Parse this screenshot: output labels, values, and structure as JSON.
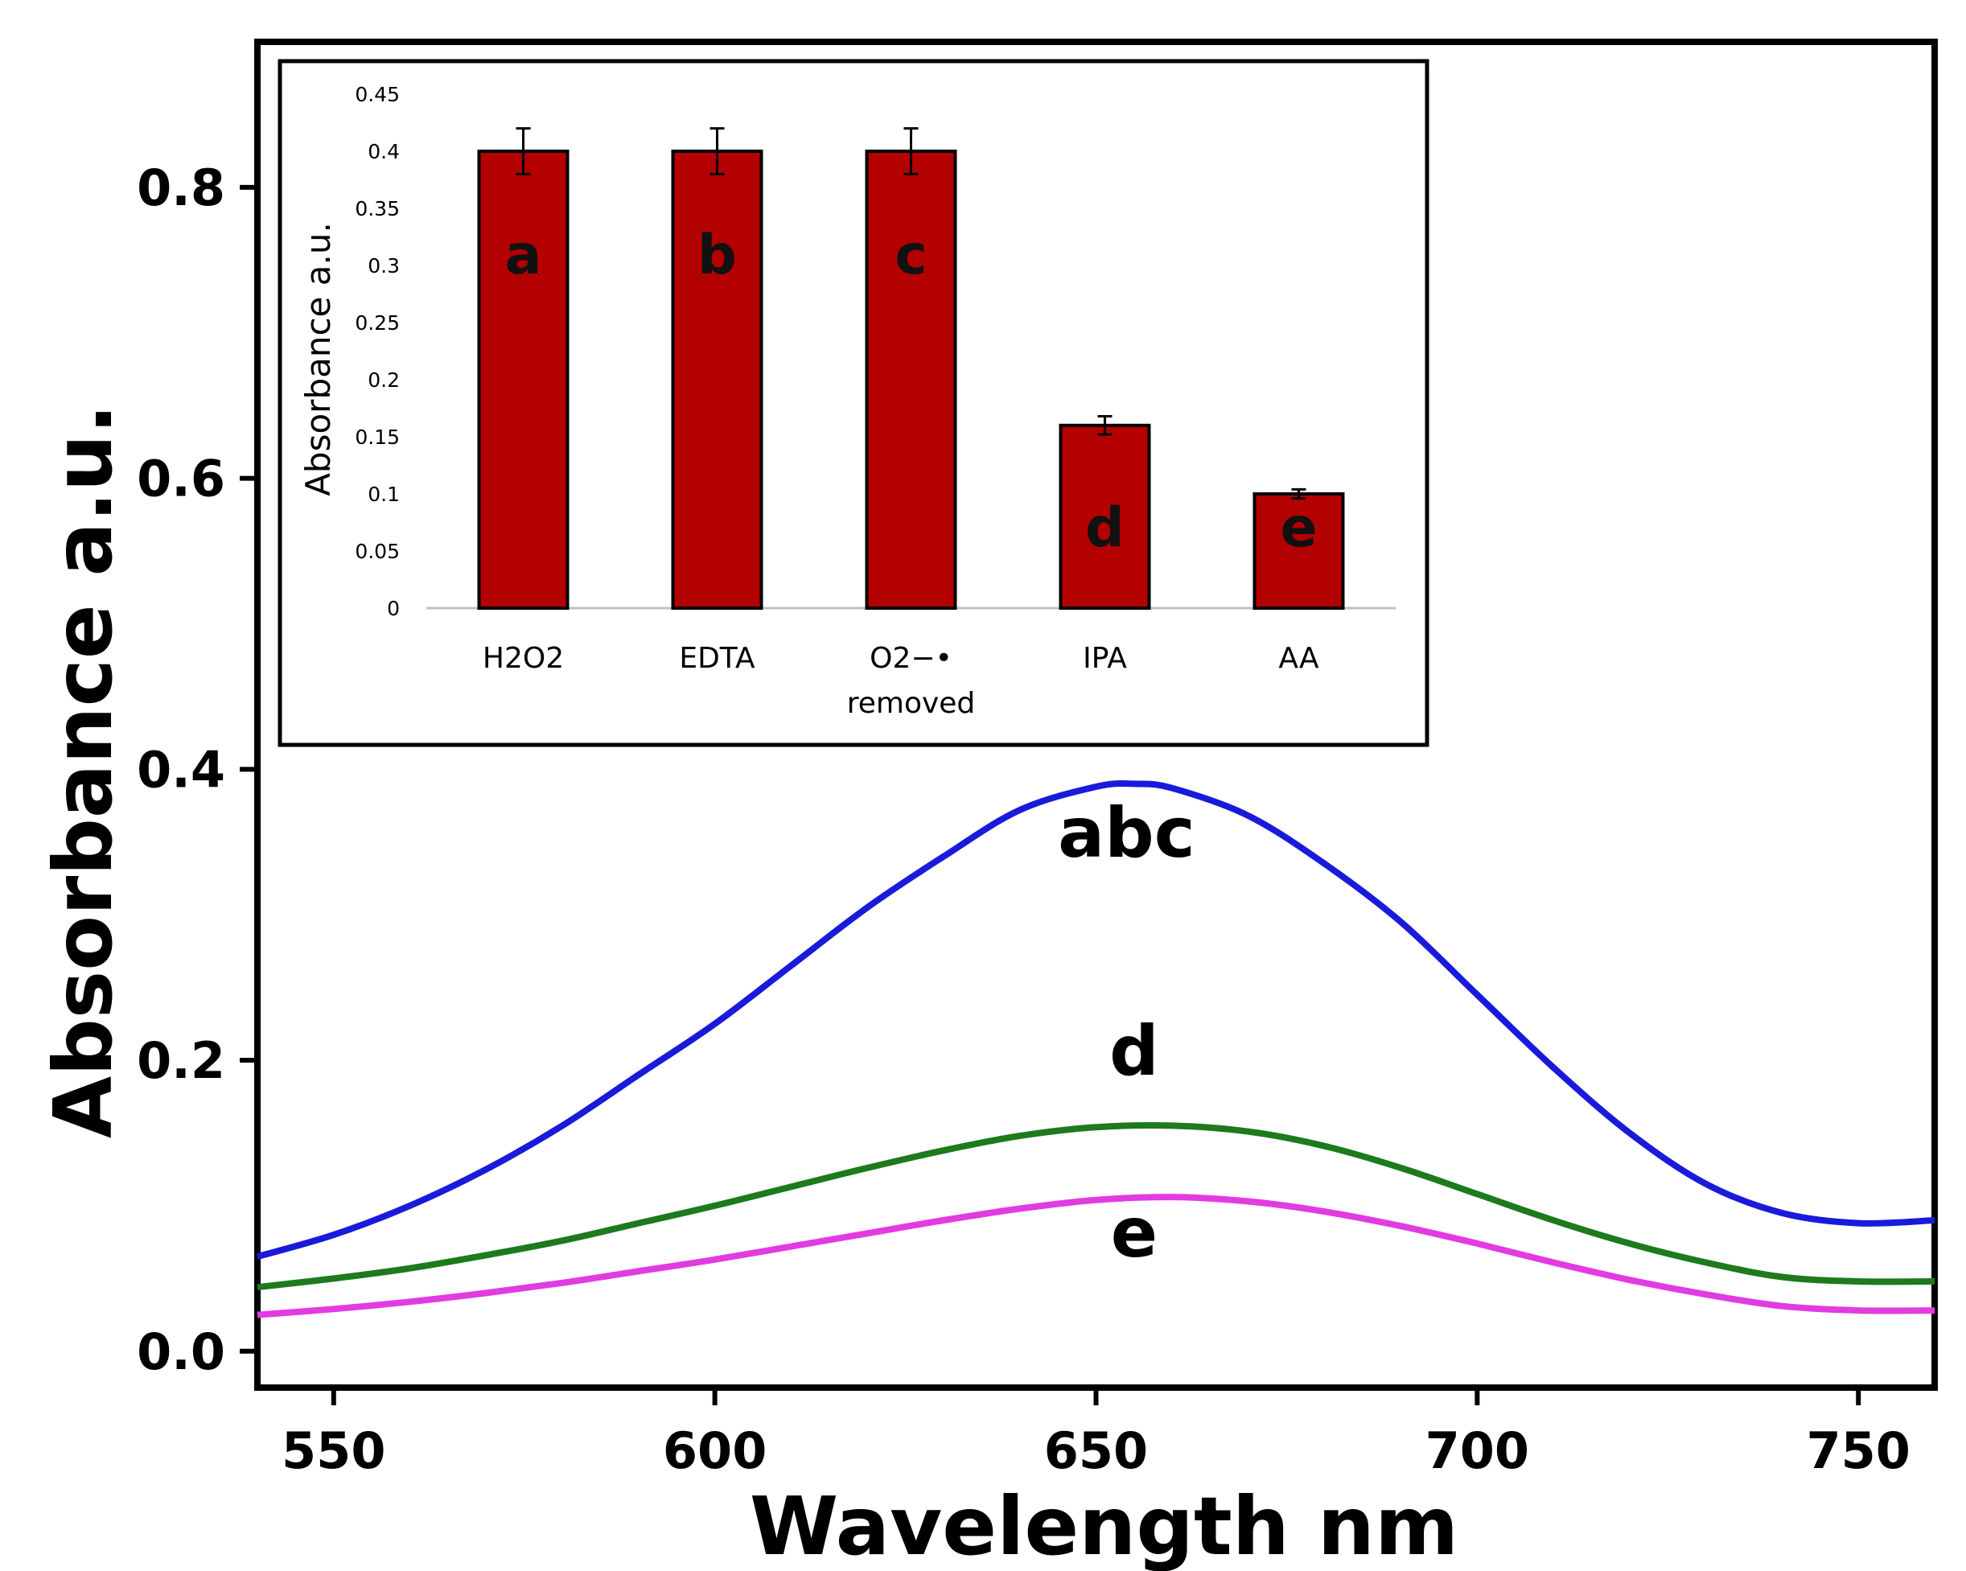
{
  "chart_data": [
    {
      "type": "line",
      "title": "",
      "xlabel": "Wavelength nm",
      "ylabel": "Absorbance a.u.",
      "xlim": [
        540,
        760
      ],
      "ylim": [
        -0.025,
        0.9
      ],
      "xticks": [
        550,
        600,
        650,
        700,
        750
      ],
      "yticks": [
        0.0,
        0.2,
        0.4,
        0.6,
        0.8
      ],
      "xtick_labels": [
        "550",
        "600",
        "650",
        "700",
        "750"
      ],
      "ytick_labels": [
        "0.0",
        "0.2",
        "0.4",
        "0.6",
        "0.8"
      ],
      "grid": false,
      "series": [
        {
          "name": "abc",
          "label": "abc",
          "color": "#1a1adb",
          "x": [
            540,
            550,
            560,
            570,
            580,
            590,
            600,
            610,
            620,
            630,
            640,
            650,
            655,
            660,
            670,
            680,
            690,
            700,
            710,
            720,
            730,
            740,
            750,
            760
          ],
          "y": [
            0.065,
            0.08,
            0.1,
            0.125,
            0.155,
            0.19,
            0.225,
            0.265,
            0.305,
            0.34,
            0.372,
            0.388,
            0.39,
            0.387,
            0.368,
            0.335,
            0.295,
            0.245,
            0.195,
            0.15,
            0.115,
            0.095,
            0.088,
            0.09
          ]
        },
        {
          "name": "d",
          "label": "d",
          "color": "#1d7a1d",
          "x": [
            540,
            550,
            560,
            570,
            580,
            590,
            600,
            610,
            620,
            630,
            640,
            650,
            660,
            670,
            680,
            690,
            700,
            710,
            720,
            730,
            740,
            750,
            760
          ],
          "y": [
            0.044,
            0.05,
            0.057,
            0.066,
            0.076,
            0.088,
            0.1,
            0.113,
            0.126,
            0.138,
            0.148,
            0.154,
            0.155,
            0.151,
            0.141,
            0.126,
            0.108,
            0.09,
            0.074,
            0.061,
            0.051,
            0.048,
            0.048
          ]
        },
        {
          "name": "e",
          "label": "e",
          "color": "#e23be2",
          "x": [
            540,
            550,
            560,
            570,
            580,
            590,
            600,
            610,
            620,
            630,
            640,
            650,
            660,
            670,
            680,
            690,
            700,
            710,
            720,
            730,
            740,
            750,
            760
          ],
          "y": [
            0.025,
            0.029,
            0.034,
            0.04,
            0.047,
            0.055,
            0.063,
            0.072,
            0.081,
            0.09,
            0.098,
            0.104,
            0.106,
            0.103,
            0.096,
            0.086,
            0.074,
            0.061,
            0.049,
            0.039,
            0.031,
            0.028,
            0.028
          ]
        }
      ],
      "curve_labels": [
        {
          "text": "abc",
          "x": 654,
          "y": 0.34
        },
        {
          "text": "d",
          "x": 655,
          "y": 0.19
        },
        {
          "text": "e",
          "x": 655,
          "y": 0.065
        }
      ]
    },
    {
      "type": "bar",
      "title": "",
      "xlabel": "",
      "ylabel": "Absorbance a.u.",
      "ylim": [
        0,
        0.45
      ],
      "yticks": [
        0,
        0.05,
        0.1,
        0.15,
        0.2,
        0.25,
        0.3,
        0.35,
        0.4,
        0.45
      ],
      "ytick_labels": [
        "0",
        "0.05",
        "0.1",
        "0.15",
        "0.2",
        "0.25",
        "0.3",
        "0.35",
        "0.4",
        "0.45"
      ],
      "categories": [
        "H2O2",
        "EDTA",
        "O2−• removed",
        "IPA",
        "AA"
      ],
      "category_lines": [
        [
          "H2O2"
        ],
        [
          "EDTA"
        ],
        [
          "O2−•",
          "removed"
        ],
        [
          "IPA"
        ],
        [
          "AA"
        ]
      ],
      "values": [
        0.4,
        0.4,
        0.4,
        0.16,
        0.1
      ],
      "errors": [
        0.02,
        0.02,
        0.02,
        0.008,
        0.004
      ],
      "bar_letters": [
        "a",
        "b",
        "c",
        "d",
        "e"
      ],
      "bar_color": "#b30000",
      "legend": "none"
    }
  ]
}
